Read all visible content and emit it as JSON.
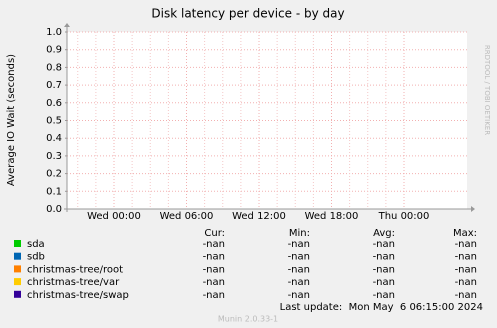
{
  "chart_data": {
    "type": "line",
    "title": "Disk latency per device - by day",
    "ylabel": "Average IO Wait (seconds)",
    "watermark": "RRDTOOL / TOBI OETIKER",
    "xticks": [
      "Wed 00:00",
      "Wed 06:00",
      "Wed 12:00",
      "Wed 18:00",
      "Thu 00:00"
    ],
    "ylim": [
      0,
      1
    ],
    "yticks": [
      {
        "value": 0,
        "label": "0.0"
      },
      0.1,
      0.2,
      0.3,
      0.4,
      0.5,
      0.6,
      0.7,
      0.8,
      0.9,
      {
        "value": 1,
        "label": "1.0"
      }
    ],
    "grid": true,
    "columns": [
      "Cur:",
      "Min:",
      "Avg:",
      "Max:"
    ],
    "series": [
      {
        "name": "sda",
        "color": "#00cc00",
        "stats": [
          "-nan",
          "-nan",
          "-nan",
          "-nan"
        ]
      },
      {
        "name": "sdb",
        "color": "#0066b3",
        "stats": [
          "-nan",
          "-nan",
          "-nan",
          "-nan"
        ]
      },
      {
        "name": "christmas-tree/root",
        "color": "#ff8000",
        "stats": [
          "-nan",
          "-nan",
          "-nan",
          "-nan"
        ]
      },
      {
        "name": "christmas-tree/var",
        "color": "#ffcc00",
        "stats": [
          "-nan",
          "-nan",
          "-nan",
          "-nan"
        ]
      },
      {
        "name": "christmas-tree/swap",
        "color": "#330099",
        "stats": [
          "-nan",
          "-nan",
          "-nan",
          "-nan"
        ]
      }
    ],
    "last_update": "Last update:  Mon May  6 06:15:00 2024",
    "footer": "Munin 2.0.33-1"
  }
}
